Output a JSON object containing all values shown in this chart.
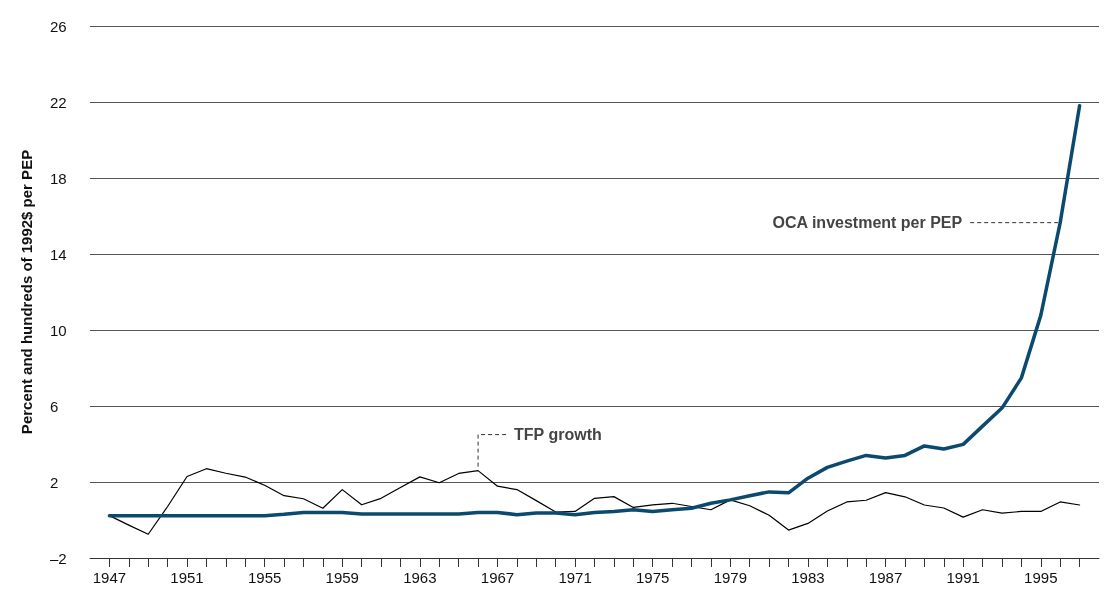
{
  "chart_data": {
    "type": "line",
    "ylabel": "Percent and hundreds of 1992$ per PEP",
    "x": [
      1947,
      1948,
      1949,
      1950,
      1951,
      1952,
      1953,
      1954,
      1955,
      1956,
      1957,
      1958,
      1959,
      1960,
      1961,
      1962,
      1963,
      1964,
      1965,
      1966,
      1967,
      1968,
      1969,
      1970,
      1971,
      1972,
      1973,
      1974,
      1975,
      1976,
      1977,
      1978,
      1979,
      1980,
      1981,
      1982,
      1983,
      1984,
      1985,
      1986,
      1987,
      1988,
      1989,
      1990,
      1991,
      1992,
      1993,
      1994,
      1995,
      1996,
      1997
    ],
    "series": [
      {
        "color": "#000000",
        "values": [
          0.23,
          -0.27,
          -0.75,
          0.71,
          2.29,
          2.7,
          2.46,
          2.26,
          1.83,
          1.28,
          1.12,
          0.62,
          1.6,
          0.8,
          1.14,
          1.71,
          2.27,
          1.96,
          2.45,
          2.6,
          1.78,
          1.6,
          1.02,
          0.42,
          0.45,
          1.14,
          1.23,
          0.66,
          0.8,
          0.88,
          0.71,
          0.54,
          1.06,
          0.75,
          0.25,
          -0.53,
          -0.18,
          0.47,
          0.95,
          1.04,
          1.44,
          1.22,
          0.79,
          0.63,
          0.15,
          0.54,
          0.36,
          0.45,
          0.45,
          0.95,
          0.79
        ]
      },
      {
        "color": "#0b4a6e",
        "values": [
          0.23,
          0.23,
          0.23,
          0.23,
          0.23,
          0.23,
          0.23,
          0.23,
          0.23,
          0.3,
          0.4,
          0.4,
          0.4,
          0.32,
          0.32,
          0.32,
          0.32,
          0.32,
          0.32,
          0.4,
          0.4,
          0.28,
          0.37,
          0.37,
          0.28,
          0.4,
          0.45,
          0.54,
          0.45,
          0.54,
          0.62,
          0.88,
          1.06,
          1.28,
          1.48,
          1.43,
          2.2,
          2.77,
          3.1,
          3.4,
          3.26,
          3.4,
          3.9,
          3.74,
          3.98,
          4.94,
          5.89,
          7.48,
          10.77,
          15.65,
          21.8
        ]
      }
    ],
    "annotations": [
      {
        "text": "TFP growth",
        "x": 1966,
        "y": 2.6
      },
      {
        "text": "OCA investment per PEP",
        "x": 1996,
        "y": 15.65
      }
    ],
    "xlim": [
      1946,
      1998
    ],
    "xticks": [
      1947,
      {
        "value": 1948,
        "label": null
      },
      {
        "value": 1949,
        "label": null
      },
      {
        "value": 1950,
        "label": null
      },
      1951,
      {
        "value": 1952,
        "label": null
      },
      {
        "value": 1953,
        "label": null
      },
      {
        "value": 1954,
        "label": null
      },
      1955,
      {
        "value": 1956,
        "label": null
      },
      {
        "value": 1957,
        "label": null
      },
      {
        "value": 1958,
        "label": null
      },
      1959,
      {
        "value": 1960,
        "label": null
      },
      {
        "value": 1961,
        "label": null
      },
      {
        "value": 1962,
        "label": null
      },
      1963,
      {
        "value": 1964,
        "label": null
      },
      {
        "value": 1965,
        "label": null
      },
      {
        "value": 1966,
        "label": null
      },
      1967,
      {
        "value": 1968,
        "label": null
      },
      {
        "value": 1969,
        "label": null
      },
      {
        "value": 1970,
        "label": null
      },
      1971,
      {
        "value": 1972,
        "label": null
      },
      {
        "value": 1973,
        "label": null
      },
      {
        "value": 1974,
        "label": null
      },
      1975,
      {
        "value": 1976,
        "label": null
      },
      {
        "value": 1977,
        "label": null
      },
      {
        "value": 1978,
        "label": null
      },
      1979,
      {
        "value": 1980,
        "label": null
      },
      {
        "value": 1981,
        "label": null
      },
      {
        "value": 1982,
        "label": null
      },
      1983,
      {
        "value": 1984,
        "label": null
      },
      {
        "value": 1985,
        "label": null
      },
      {
        "value": 1986,
        "label": null
      },
      1987,
      {
        "value": 1988,
        "label": null
      },
      {
        "value": 1989,
        "label": null
      },
      {
        "value": 1990,
        "label": null
      },
      1991,
      {
        "value": 1992,
        "label": null
      },
      {
        "value": 1993,
        "label": null
      },
      {
        "value": 1994,
        "label": null
      },
      1995,
      {
        "value": 1996,
        "label": null
      },
      {
        "value": 1997,
        "label": null
      }
    ],
    "ylim": [
      -2,
      26
    ],
    "yticks": [
      {
        "value": -2,
        "label": "–2"
      },
      2,
      6,
      10,
      14,
      18,
      22,
      26
    ],
    "grid": "y",
    "marker": "none",
    "line_style": "solid"
  }
}
